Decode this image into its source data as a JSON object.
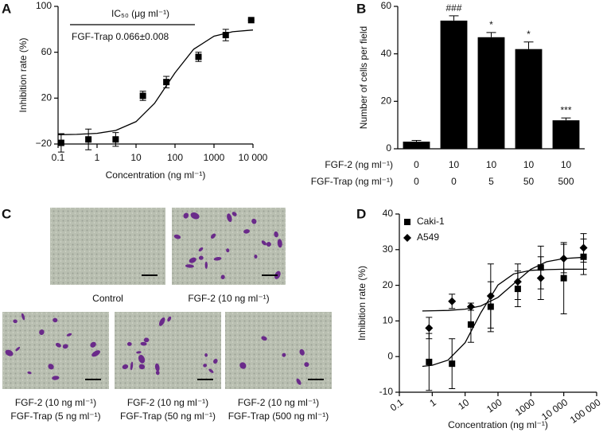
{
  "chart_data": [
    {
      "type": "xy",
      "panel": "A",
      "xscale": "log",
      "xlabel": "Concentration (ng ml⁻¹)",
      "ylabel": "Inhibition rate (%)",
      "xlim": [
        0.1,
        10000
      ],
      "xticks": [
        0.1,
        1,
        10,
        100,
        1000,
        {
          "value": 10000,
          "label": "10 000"
        }
      ],
      "ylim": [
        -20,
        100
      ],
      "yticks": [
        {
          "value": -20,
          "label": "−20"
        },
        20,
        60,
        100
      ],
      "annotations": [
        "IC₅₀ (μg ml⁻¹)",
        "FGF-Trap 0.066±0.008"
      ],
      "series": [
        {
          "color": "#000",
          "marker": "square",
          "x": [
            0.12,
            0.6,
            3,
            15,
            60,
            400,
            2000,
            9000
          ],
          "values": [
            -19,
            -16,
            -16,
            22,
            34,
            56,
            75,
            88
          ],
          "errors": [
            8,
            9,
            6,
            4,
            5,
            4,
            5,
            0
          ],
          "fit_x": [
            0.1,
            0.3,
            1,
            3,
            10,
            30,
            100,
            300,
            1000,
            3000,
            10000
          ],
          "fit_values": [
            -11.9,
            -11.6,
            -10.7,
            -8.2,
            -0.5,
            15.6,
            42.1,
            62.6,
            74.0,
            77.9,
            79.4
          ]
        }
      ]
    },
    {
      "type": "bar",
      "panel": "B",
      "ylabel": "Number of cells per field",
      "ylim": [
        0,
        60
      ],
      "yticks": [
        0,
        20,
        40,
        60
      ],
      "color": "#000",
      "category_rows": [
        {
          "label": "FGF-2 (ng ml⁻¹)",
          "values": [
            0,
            10,
            10,
            10,
            10
          ]
        },
        {
          "label": "FGF-Trap (ng ml⁻¹)",
          "values": [
            0,
            0,
            5,
            50,
            500
          ]
        }
      ],
      "values": [
        3,
        54,
        47,
        42,
        12
      ],
      "errors": [
        0.5,
        2,
        2,
        3,
        1
      ],
      "value_labels": [
        null,
        "###",
        "*",
        "*",
        "***"
      ]
    },
    {
      "type": "xy",
      "panel": "D",
      "xscale": "log",
      "legend": "upper-left",
      "xlabel": "Concentration (ng ml⁻¹)",
      "ylabel": "Inhibition rate (%)",
      "xlim": [
        0.1,
        100000
      ],
      "xticks": [
        0.1,
        1,
        10,
        100,
        1000,
        {
          "value": 10000,
          "label": "10 000"
        },
        {
          "value": 100000,
          "label": "100 000"
        }
      ],
      "ylim": [
        -10,
        40
      ],
      "yticks": [
        -10,
        0,
        10,
        20,
        30,
        40
      ],
      "series": [
        {
          "name": "Caki-1",
          "color": "#000",
          "marker": "square",
          "x": [
            0.8,
            4,
            15,
            60,
            400,
            2000,
            10000,
            40000
          ],
          "values": [
            -1.5,
            -2,
            9,
            14,
            19,
            25,
            22,
            28
          ],
          "errors": [
            8,
            7,
            5,
            7,
            5,
            6,
            10,
            5
          ],
          "fit_x": [
            0.5,
            1,
            3,
            10,
            30,
            100,
            300,
            1000,
            3000,
            10000,
            50000
          ],
          "fit_values": [
            -2.75,
            -2.44,
            -1.0,
            3.9,
            12.3,
            20.1,
            23.2,
            24.2,
            24.4,
            24.5,
            24.5
          ]
        },
        {
          "name": "A549",
          "color": "#000",
          "marker": "diamond",
          "x": [
            0.8,
            4,
            15,
            60,
            400,
            2000,
            10000,
            40000
          ],
          "values": [
            8,
            15.5,
            14,
            17,
            21,
            22,
            27.5,
            30.5
          ],
          "errors": [
            3,
            2,
            1,
            9,
            5,
            6,
            4,
            4
          ],
          "fit_x": [
            0.5,
            1,
            3,
            10,
            30,
            100,
            300,
            1000,
            3000,
            10000,
            50000
          ],
          "fit_values": [
            12.8,
            12.85,
            12.95,
            13.3,
            14.2,
            16.6,
            20.4,
            24.5,
            26.6,
            27.5,
            27.9
          ]
        }
      ]
    }
  ],
  "panel_c": {
    "panel": "C",
    "images": [
      {
        "caption": [
          "Control"
        ]
      },
      {
        "caption": [
          "FGF-2 (10 ng ml⁻¹)"
        ]
      },
      {
        "caption": [
          "FGF-2 (10 ng ml⁻¹)",
          "FGF-Trap (5 ng ml⁻¹)"
        ]
      },
      {
        "caption": [
          "FGF-2 (10 ng ml⁻¹)",
          "FGF-Trap (50 ng ml⁻¹)"
        ]
      },
      {
        "caption": [
          "FGF-2 (10 ng ml⁻¹)",
          "FGF-Trap (500 ng ml⁻¹)"
        ]
      }
    ]
  }
}
